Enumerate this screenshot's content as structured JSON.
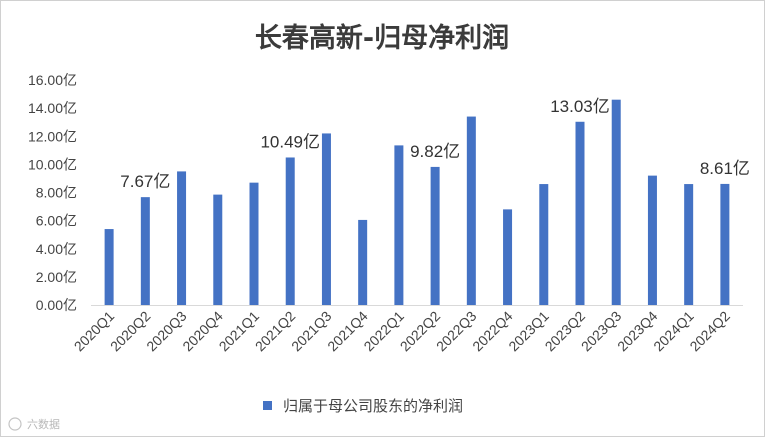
{
  "chart_data": {
    "type": "bar",
    "title": "长春高新-归母净利润",
    "categories": [
      "2020Q1",
      "2020Q2",
      "2020Q3",
      "2020Q4",
      "2021Q1",
      "2021Q2",
      "2021Q3",
      "2021Q4",
      "2022Q1",
      "2022Q2",
      "2022Q3",
      "2022Q4",
      "2023Q1",
      "2023Q2",
      "2023Q3",
      "2023Q4",
      "2024Q1",
      "2024Q2"
    ],
    "series": [
      {
        "name": "归属于母公司股东的净利润",
        "color": "#4472c4",
        "values": [
          5.4,
          7.67,
          9.5,
          7.85,
          8.7,
          10.49,
          12.2,
          6.05,
          11.35,
          9.82,
          13.4,
          6.8,
          8.6,
          13.03,
          14.6,
          9.2,
          8.6,
          8.61
        ]
      }
    ],
    "ylim": [
      0,
      16
    ],
    "yticks": [
      "0.00亿",
      "2.00亿",
      "4.00亿",
      "6.00亿",
      "8.00亿",
      "10.00亿",
      "12.00亿",
      "14.00亿",
      "16.00亿"
    ],
    "data_labels": [
      {
        "index": 1,
        "text": "7.67亿"
      },
      {
        "index": 5,
        "text": "10.49亿"
      },
      {
        "index": 9,
        "text": "9.82亿"
      },
      {
        "index": 13,
        "text": "13.03亿"
      },
      {
        "index": 17,
        "text": "8.61亿"
      }
    ],
    "legend_position": "bottom",
    "grid": false
  },
  "watermark": "六数据"
}
